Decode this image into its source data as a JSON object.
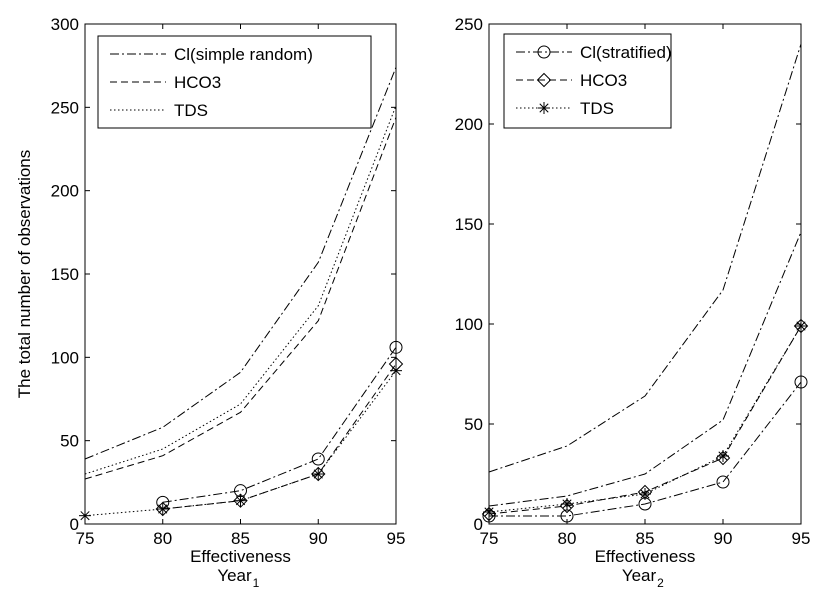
{
  "chart_data": [
    {
      "type": "line",
      "title": "",
      "xlabel": "Effectiveness",
      "xlabel_sub": "Year",
      "xlabel_subscript": "1",
      "ylabel": "The total number of observations",
      "xlim": [
        75,
        95
      ],
      "ylim": [
        0,
        300
      ],
      "xticks": [
        75,
        80,
        85,
        90,
        95
      ],
      "yticks": [
        0,
        50,
        100,
        150,
        200,
        250,
        300
      ],
      "grid": false,
      "legend_position": "top-left",
      "legend": [
        {
          "label": "Cl(simple random)",
          "style": "dashdot",
          "marker": "none"
        },
        {
          "label": "HCO3",
          "style": "dashed",
          "marker": "none"
        },
        {
          "label": "TDS",
          "style": "dotted",
          "marker": "none"
        }
      ],
      "series": [
        {
          "style": "dashdot",
          "marker": "none",
          "x": [
            75,
            80,
            85,
            90,
            95
          ],
          "y": [
            39,
            58,
            91,
            157,
            274
          ]
        },
        {
          "style": "dashed",
          "marker": "none",
          "x": [
            75,
            80,
            85,
            90,
            95
          ],
          "y": [
            27,
            41,
            67,
            122,
            244
          ]
        },
        {
          "style": "dotted",
          "marker": "none",
          "x": [
            75,
            80,
            85,
            90,
            95
          ],
          "y": [
            30,
            45,
            72,
            131,
            251
          ]
        },
        {
          "style": "dashdot",
          "marker": "circle",
          "x": [
            80,
            85,
            90,
            95
          ],
          "y": [
            13,
            20,
            39,
            106
          ]
        },
        {
          "style": "dashed",
          "marker": "diamond",
          "x": [
            80,
            85,
            90,
            95
          ],
          "y": [
            9,
            14,
            30,
            96
          ]
        },
        {
          "style": "dotted",
          "marker": "star",
          "x": [
            75,
            80,
            85,
            90,
            95
          ],
          "y": [
            5,
            9,
            14,
            30,
            92
          ]
        }
      ]
    },
    {
      "type": "line",
      "title": "",
      "xlabel": "Effectiveness",
      "xlabel_sub": "Year",
      "xlabel_subscript": "2",
      "ylabel": "",
      "xlim": [
        75,
        95
      ],
      "ylim": [
        0,
        250
      ],
      "xticks": [
        75,
        80,
        85,
        90,
        95
      ],
      "yticks": [
        0,
        50,
        100,
        150,
        200,
        250
      ],
      "grid": false,
      "legend_position": "top-left",
      "legend": [
        {
          "label": "Cl(stratified)",
          "style": "dashdot",
          "marker": "circle"
        },
        {
          "label": "HCO3",
          "style": "dashed",
          "marker": "diamond"
        },
        {
          "label": "TDS",
          "style": "dotted",
          "marker": "star"
        }
      ],
      "series": [
        {
          "style": "dashdot",
          "marker": "none",
          "x": [
            75,
            80,
            85,
            90,
            95
          ],
          "y": [
            26,
            39,
            64,
            117,
            240
          ]
        },
        {
          "style": "dashdot",
          "marker": "none",
          "x": [
            75,
            80,
            85,
            90,
            95
          ],
          "y": [
            9,
            14,
            25,
            52,
            146
          ]
        },
        {
          "style": "dashdot",
          "marker": "circle",
          "x": [
            75,
            80,
            85,
            90,
            95
          ],
          "y": [
            4,
            4,
            10,
            21,
            71
          ]
        },
        {
          "style": "dashed",
          "marker": "diamond",
          "x": [
            75,
            80,
            85,
            90,
            95
          ],
          "y": [
            5,
            9,
            16,
            33,
            99
          ]
        },
        {
          "style": "dotted",
          "marker": "star",
          "x": [
            75,
            80,
            85,
            90,
            95
          ],
          "y": [
            6,
            10,
            15,
            34,
            99
          ]
        }
      ]
    }
  ]
}
